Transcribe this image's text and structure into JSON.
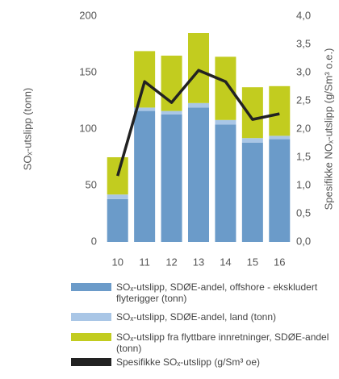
{
  "chart_data": {
    "type": "bar",
    "categories": [
      "10",
      "11",
      "12",
      "13",
      "14",
      "15",
      "16"
    ],
    "stacked": true,
    "series": [
      {
        "name": "SOₓ-utslipp, SDØE-andel, offshore - ekskludert flyterigger (tonn)",
        "color": "#6b9bc9",
        "values": [
          38,
          116,
          113,
          119,
          104,
          88,
          91
        ]
      },
      {
        "name": "SOₓ-utslipp, SDØE-andel, land (tonn)",
        "color": "#a9c6e6",
        "values": [
          4,
          3,
          3,
          4,
          4,
          4,
          3
        ]
      },
      {
        "name": "SOₓ-utslipp fra flyttbare innretninger, SDØE-andel (tonn)",
        "color": "#c2cc1f",
        "values": [
          33,
          50,
          49,
          62,
          56,
          45,
          44
        ]
      },
      {
        "name": "Spesifikke SOₓ-utslipp (g/Sm³ oe)",
        "color": "#222222",
        "type": "line",
        "axis": "y2",
        "values": [
          1.17,
          2.84,
          2.47,
          3.04,
          2.84,
          2.17,
          2.27
        ]
      }
    ],
    "ylabel": "SOₓ-utslipp (tonn)",
    "y2label": "Spesifikke NOₓ-utslipp (g/Sm³ o.e.)",
    "ylim": [
      0,
      200
    ],
    "yticks": [
      0,
      50,
      100,
      150,
      200
    ],
    "y2lim": [
      0,
      4
    ],
    "y2ticks": [
      {
        "value": 0,
        "label": "0,0"
      },
      {
        "value": 0.5,
        "label": "0,5"
      },
      {
        "value": 1,
        "label": "1,0"
      },
      {
        "value": 1.5,
        "label": "1,5"
      },
      {
        "value": 2,
        "label": "2,0"
      },
      {
        "value": 2.5,
        "label": "2,5"
      },
      {
        "value": 3,
        "label": "3,0"
      },
      {
        "value": 3.5,
        "label": "3,5"
      },
      {
        "value": 4,
        "label": "4,0"
      }
    ],
    "grid": false,
    "legend": "bottom"
  }
}
